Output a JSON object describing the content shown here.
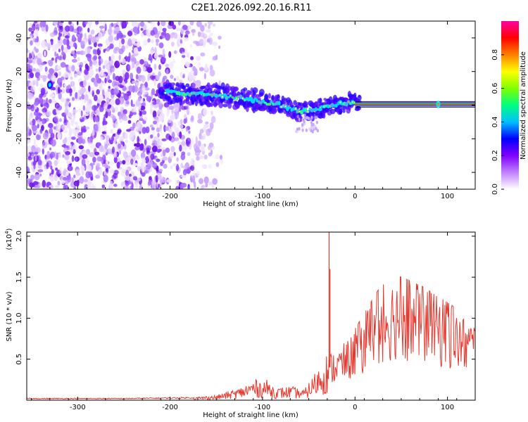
{
  "title": "C2E1.2026.092.20.16.R11",
  "chart_data": [
    {
      "type": "heatmap",
      "name": "spectrogram",
      "xlabel": "Height of straight line (km)",
      "ylabel": "Frequency (Hz)",
      "xlim": [
        -355,
        130
      ],
      "ylim": [
        -50,
        50
      ],
      "xticks": [
        "-300",
        "-200",
        "-100",
        "0",
        "100"
      ],
      "yticks": [
        "-40",
        "-20",
        "0",
        "20",
        "40"
      ],
      "colorbar": {
        "label": "Normalized spectral amplitude",
        "range": [
          0,
          1
        ],
        "ticks": [
          "0.0",
          "0.2",
          "0.4",
          "0.6",
          "0.8"
        ],
        "colormap": [
          "#ffffff",
          "#c080ff",
          "#8000ff",
          "#0000ff",
          "#00c0ff",
          "#00ff80",
          "#80ff00",
          "#ffff00",
          "#ff8000",
          "#ff0000",
          "#ff00a0"
        ]
      },
      "ridge": [
        {
          "x": -210,
          "y": 8
        },
        {
          "x": -180,
          "y": 7
        },
        {
          "x": -150,
          "y": 6
        },
        {
          "x": -120,
          "y": 4
        },
        {
          "x": -100,
          "y": 2
        },
        {
          "x": -80,
          "y": 0
        },
        {
          "x": -60,
          "y": -4
        },
        {
          "x": -45,
          "y": -3
        },
        {
          "x": -30,
          "y": -1
        },
        {
          "x": -15,
          "y": 1
        },
        {
          "x": 0,
          "y": 2
        },
        {
          "x": 5,
          "y": 0.5
        },
        {
          "x": 130,
          "y": 0.5
        }
      ],
      "noise_region": {
        "x_start": -355,
        "x_end": -175,
        "fade_end": -140
      }
    },
    {
      "type": "line",
      "name": "snr",
      "xlabel": "Height of straight line (km)",
      "ylabel": "SNR (10 * v/v)",
      "y_multiplier": "(x10",
      "y_exponent": "4",
      "y_multiplier_close": ")",
      "xlim": [
        -355,
        130
      ],
      "ylim": [
        0,
        2.05
      ],
      "xticks": [
        "-300",
        "-200",
        "-100",
        "0",
        "100"
      ],
      "yticks": [
        "0.5",
        "1.0",
        "1.5",
        "2.0"
      ],
      "series": [
        {
          "name": "SNR",
          "color": "#e8382e",
          "points": [
            {
              "x": -355,
              "y": 0.02
            },
            {
              "x": -250,
              "y": 0.02
            },
            {
              "x": -175,
              "y": 0.03
            },
            {
              "x": -150,
              "y": 0.05
            },
            {
              "x": -125,
              "y": 0.12
            },
            {
              "x": -110,
              "y": 0.2
            },
            {
              "x": -95,
              "y": 0.2
            },
            {
              "x": -85,
              "y": 0.12
            },
            {
              "x": -70,
              "y": 0.14
            },
            {
              "x": -55,
              "y": 0.1
            },
            {
              "x": -45,
              "y": 0.25
            },
            {
              "x": -35,
              "y": 0.4
            },
            {
              "x": -28,
              "y": 0.52
            },
            {
              "x": -15,
              "y": 0.6
            },
            {
              "x": -5,
              "y": 0.7
            },
            {
              "x": 5,
              "y": 0.88
            },
            {
              "x": 15,
              "y": 1.05
            },
            {
              "x": 25,
              "y": 1.22
            },
            {
              "x": 35,
              "y": 1.33
            },
            {
              "x": 45,
              "y": 1.38
            },
            {
              "x": 55,
              "y": 1.35
            },
            {
              "x": 65,
              "y": 1.3
            },
            {
              "x": 75,
              "y": 1.25
            },
            {
              "x": 85,
              "y": 1.18
            },
            {
              "x": 95,
              "y": 1.12
            },
            {
              "x": 105,
              "y": 1.05
            },
            {
              "x": 115,
              "y": 0.95
            },
            {
              "x": 125,
              "y": 0.9
            },
            {
              "x": 130,
              "y": 0.88
            }
          ],
          "spikes": [
            {
              "x": -28,
              "y": 2.05
            },
            {
              "x": -27,
              "y": 1.6
            }
          ]
        }
      ]
    }
  ]
}
